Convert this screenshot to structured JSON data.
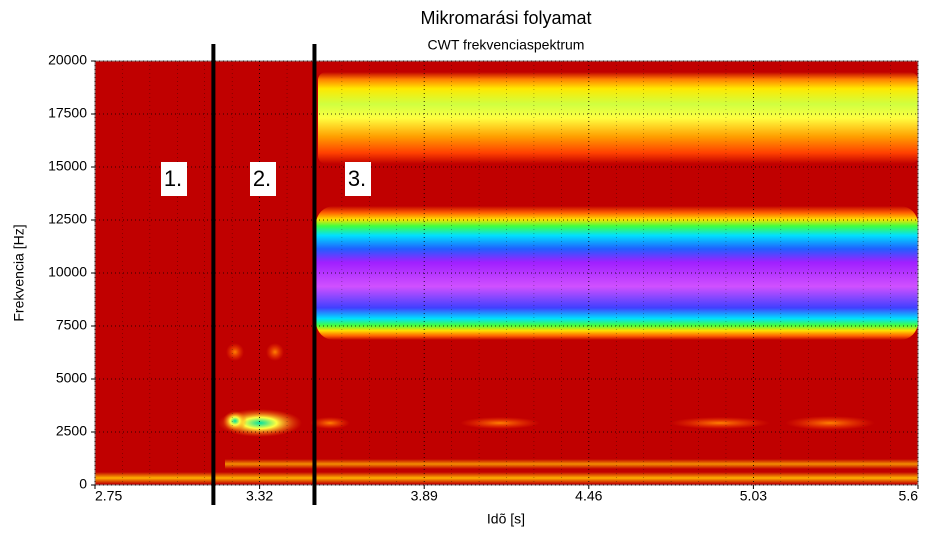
{
  "chart_data": {
    "type": "heatmap",
    "title": "Mikromarási folyamat",
    "subtitle": "CWT frekvenciaspektrum",
    "x_label": "Idõ [s]",
    "y_label": "Frekvencia [Hz]",
    "xlim": [
      2.75,
      5.6
    ],
    "xticks": [
      2.75,
      3.32,
      3.89,
      4.46,
      5.03,
      5.6
    ],
    "ylim": [
      0,
      20000
    ],
    "yticks": [
      0,
      2500,
      5000,
      7500,
      10000,
      12500,
      15000,
      17500,
      20000
    ],
    "grid": true,
    "vlines": [
      3.16,
      3.51
    ],
    "annotations": [
      "1.",
      "2.",
      "3."
    ]
  }
}
